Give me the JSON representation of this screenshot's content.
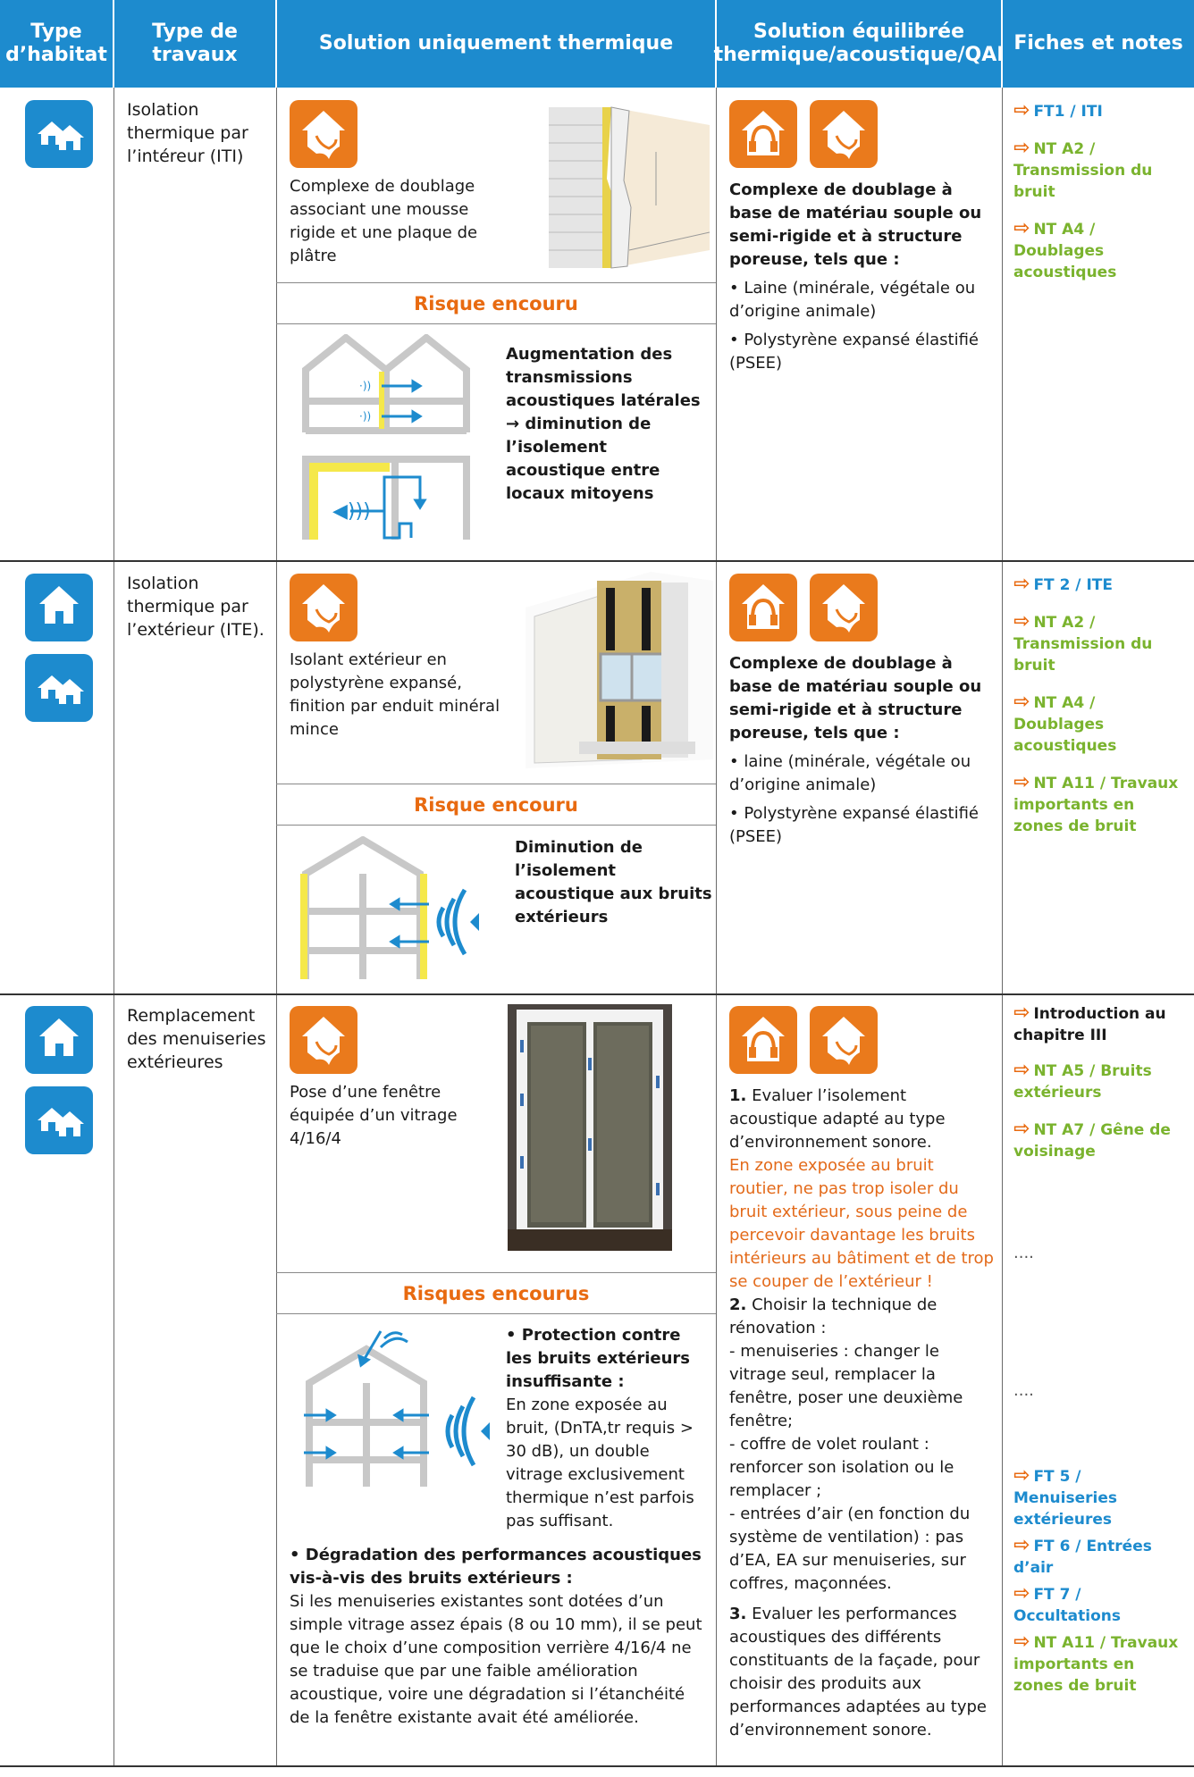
{
  "header": {
    "col1": "Type d’habitat",
    "col2": "Type de travaux",
    "col3": "Solution uniquement thermique",
    "col4": "Solution équilibrée thermique/acoustique/QAI",
    "col5": "Fiches et notes"
  },
  "rows": [
    {
      "travaux": "Isolation thermique par l’intéreur (ITI)",
      "thermique_text": "Complexe de doublage associant une mousse rigide et une plaque de plâtre",
      "risque_title": "Risque encouru",
      "risque_text": "Augmentation des transmissions acoustiques latérales → diminution de l’isolement acoustique entre locaux mitoyens",
      "equilibre_intro": "Complexe de doublage à base de matériau souple ou semi-rigide et à structure poreuse, tels que :",
      "equilibre_b1": "• Laine (minérale, végétale ou d’origine animale)",
      "equilibre_b2": "• Polystyrène expansé élastifié (PSEE)",
      "notes": [
        "FT1 / ITI",
        "NT A2 / Transmission du bruit",
        "NT A4 / Doublages acoustiques"
      ]
    },
    {
      "travaux": "Isolation thermique par l’extérieur (ITE).",
      "thermique_text": "Isolant extérieur en polystyrène expansé, finition par enduit minéral mince",
      "risque_title": "Risque encouru",
      "risque_text": "Diminution de l’isolement acoustique aux bruits extérieurs",
      "equilibre_intro": "Complexe de doublage à base de matériau souple ou semi-rigide et à structure poreuse, tels que :",
      "equilibre_b1": "• laine (minérale, végétale ou d’origine animale)",
      "equilibre_b2": "• Polystyrène expansé élastifié (PSEE)",
      "notes": [
        "FT 2 / ITE",
        "NT A2 / Transmission du bruit",
        "NT A4 / Doublages acoustiques",
        "NT A11 / Travaux importants en zones de bruit"
      ]
    },
    {
      "travaux": "Remplacement des menuiseries extérieures",
      "thermique_text": "Pose d’une fenêtre équipée d’un vitrage 4/16/4",
      "risque_title": "Risques encourus",
      "risque1_title": "• Protection contre les bruits extérieurs insuffisante :",
      "risque1_text": "En zone exposée au bruit, (DnTA,tr requis > 30 dB), un double vitrage exclusivement thermique n’est parfois pas suffisant.",
      "risque2_title": "• Dégradation des performances acoustiques vis-à-vis des bruits extérieurs :",
      "risque2_text": "Si les menuiseries existantes sont dotées d’un simple vitrage assez épais (8 ou 10 mm), il se peut que le choix d’une composition verrière 4/16/4 ne se traduise que par une faible amélioration acoustique, voire une dégradation si l’étanchéité de la fenêtre existante avait été améliorée.",
      "eq1_num": "1.",
      "eq1_text": "Evaluer l’isolement acoustique adapté au type d’environnement sonore.",
      "eq1_warning": "En zone exposée au bruit routier, ne pas trop isoler du bruit extérieur, sous peine de percevoir davantage les bruits intérieurs au bâtiment et de trop se couper de l’extérieur !",
      "eq2_num": "2.",
      "eq2_text": "Choisir la technique de rénovation :",
      "eq2_a": "- menuiseries : changer le vitrage seul, remplacer la fenêtre, poser une deuxième fenêtre;",
      "eq2_b": "- coffre de volet roulant : renforcer son isolation ou le remplacer ;",
      "eq2_c": "- entrées d’air (en fonction du système de ventilation) : pas d’EA, EA sur menuiseries, sur coffres, maçonnées.",
      "eq3_num": "3.",
      "eq3_text": "Evaluer les performances acoustiques des différents constituants de la façade, pour choisir des produits aux performances adaptées au type d’environnement sonore.",
      "notes_a": [
        "Introduction au chapitre III",
        "NT A5 / Bruits extérieurs",
        "NT A7 / Gêne de voisinage"
      ],
      "dots1": "....",
      "dots2": "....",
      "notes_b": [
        "FT 5 / Menuiseries extérieures",
        "FT 6 / Entrées d’air",
        "FT 7 / Occultations",
        "NT A11 / Travaux importants en zones de bruit"
      ]
    }
  ],
  "colors": {
    "header_blue": "#1d8bce",
    "orange": "#ea7a1c",
    "green": "#7ab32e"
  }
}
